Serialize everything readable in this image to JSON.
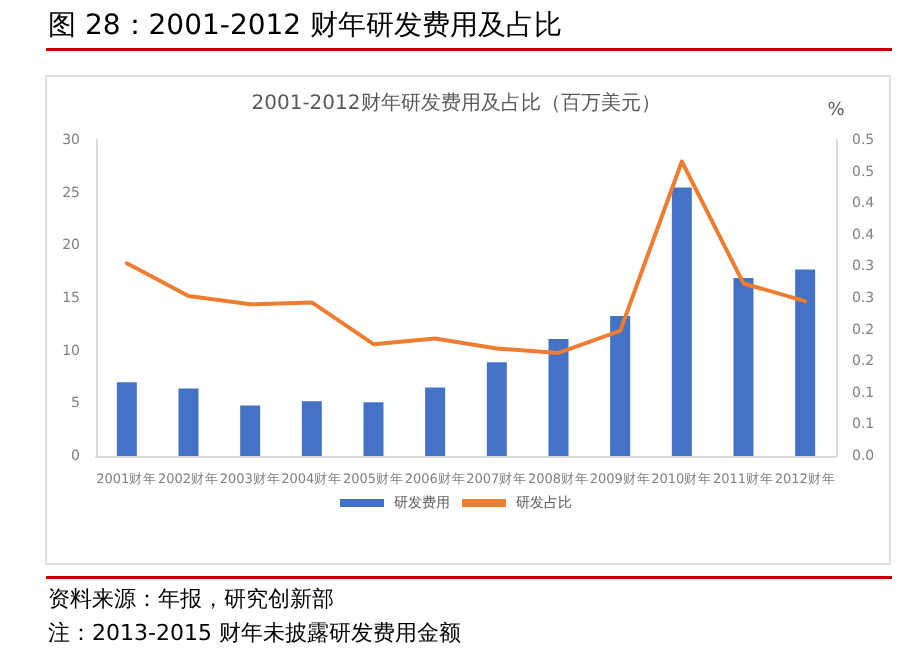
{
  "chart_data": {
    "type": "bar",
    "title": "图 28：2001-2012 财年研发费用及占比",
    "subtitle": "2001-2012财年研发费用及占比（百万美元）",
    "y2label": "%",
    "categories": [
      "2001财年",
      "2002财年",
      "2003财年",
      "2004财年",
      "2005财年",
      "2006财年",
      "2007财年",
      "2008财年",
      "2009财年",
      "2010财年",
      "2011财年",
      "2012财年"
    ],
    "series": [
      {
        "name": "研发费用",
        "color": "#4472c4",
        "values": [
          7.0,
          6.4,
          4.8,
          5.2,
          5.1,
          6.5,
          8.9,
          11.1,
          13.3,
          25.5,
          16.9,
          17.7
        ]
      },
      {
        "name": "研发占比",
        "type": "line",
        "axis": "y2",
        "color": "#ed7d31",
        "values": [
          0.305,
          0.253,
          0.24,
          0.243,
          0.177,
          0.186,
          0.17,
          0.163,
          0.198,
          0.466,
          0.273,
          0.245
        ]
      }
    ],
    "ylim": [
      0,
      30
    ],
    "yticks": [
      0,
      5,
      10,
      15,
      20,
      25,
      30
    ],
    "y2lim": [
      0,
      0.5
    ],
    "y2ticks": [
      "0.0",
      {
        "value": 0.05,
        "label": "0.1"
      },
      "0.1",
      {
        "value": 0.15,
        "label": "0.2"
      },
      "0.2",
      {
        "value": 0.25,
        "label": "0.3"
      },
      "0.3",
      {
        "value": 0.35,
        "label": "0.4"
      },
      "0.4",
      {
        "value": 0.45,
        "label": "0.5"
      },
      "0.5"
    ],
    "legend": "bottom",
    "marker": "none",
    "line_style": "solid",
    "annotations": [
      "资料来源：年报，研究创新部",
      "注：2013-2015 财年未披露研发费用金额"
    ]
  }
}
